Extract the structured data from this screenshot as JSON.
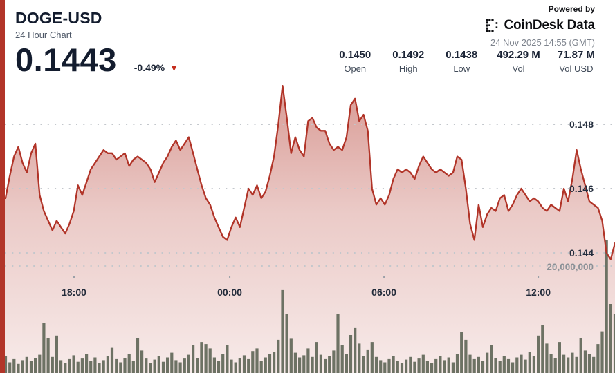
{
  "header": {
    "symbol": "DOGE-USD",
    "subtitle": "24 Hour Chart",
    "price": "0.1443",
    "change": "-0.49%",
    "change_direction": "down",
    "down_arrow": "▼"
  },
  "powered": {
    "label": "Powered by",
    "brand": "CoinDesk Data",
    "timestamp": "24 Nov 2025 14:55 (GMT)"
  },
  "stats": [
    {
      "value": "0.1450",
      "label": "Open"
    },
    {
      "value": "0.1492",
      "label": "High"
    },
    {
      "value": "0.1438",
      "label": "Low"
    },
    {
      "value": "492.29 M",
      "label": "Vol"
    },
    {
      "value": "71.87 M",
      "label": "Vol USD"
    }
  ],
  "colors": {
    "accent_red": "#b23529",
    "line": "#b13428",
    "area_fill_top": "rgba(177,52,40,0.50)",
    "area_fill_mid": "rgba(177,52,40,0.26)",
    "area_fill_bottom": "rgba(177,52,40,0.10)",
    "volume_bar": "#6d7264",
    "gridline": "#c3c7cc",
    "tick_dot": "#9aa0a8",
    "price_label": "#242e3e",
    "volume_label": "#8b9096",
    "time_label": "#222b3a"
  },
  "chart_data": {
    "type": "area",
    "title": "DOGE-USD 24 Hour Chart",
    "interval_minutes": 10,
    "points": 144,
    "ylim_price": [
      0.1438,
      0.1492
    ],
    "grid": "dotted-horizontal",
    "legend": "none",
    "y_axis_price": {
      "side": "right",
      "tick_values": [
        0.148,
        0.146,
        0.144
      ],
      "tick_labels": [
        "0.148",
        "0.146",
        "0.144"
      ]
    },
    "y_axis_volume": {
      "side": "right",
      "tick_value_millions": 20,
      "tick_label": "20,000,000"
    },
    "x_axis": {
      "tick_labels": [
        "18:00",
        "00:00",
        "06:00",
        "12:00"
      ],
      "tick_indices": [
        16.07,
        52.6,
        88.8,
        125.0
      ]
    },
    "series": [
      {
        "name": "price",
        "type": "line-area",
        "values": [
          0.1457,
          0.1464,
          0.147,
          0.1473,
          0.1468,
          0.1465,
          0.1471,
          0.1474,
          0.1458,
          0.1453,
          0.145,
          0.1447,
          0.145,
          0.1448,
          0.1446,
          0.1449,
          0.1453,
          0.1461,
          0.1458,
          0.1462,
          0.1466,
          0.1468,
          0.147,
          0.1472,
          0.1471,
          0.1471,
          0.1469,
          0.147,
          0.1471,
          0.1467,
          0.1469,
          0.147,
          0.1469,
          0.1468,
          0.1466,
          0.1462,
          0.1465,
          0.1468,
          0.147,
          0.1473,
          0.1475,
          0.1472,
          0.1474,
          0.1476,
          0.1471,
          0.1466,
          0.1461,
          0.1457,
          0.1455,
          0.1451,
          0.1448,
          0.1445,
          0.1444,
          0.1448,
          0.1451,
          0.1448,
          0.1454,
          0.146,
          0.1458,
          0.1461,
          0.1457,
          0.1459,
          0.1464,
          0.147,
          0.148,
          0.1492,
          0.1482,
          0.1471,
          0.1476,
          0.1472,
          0.147,
          0.1481,
          0.1482,
          0.1479,
          0.1478,
          0.1478,
          0.1474,
          0.1472,
          0.1473,
          0.1472,
          0.1476,
          0.1486,
          0.1488,
          0.1481,
          0.1483,
          0.1478,
          0.146,
          0.1455,
          0.1457,
          0.1455,
          0.1458,
          0.1463,
          0.1466,
          0.1465,
          0.1466,
          0.1465,
          0.1463,
          0.1467,
          0.147,
          0.1468,
          0.1466,
          0.1465,
          0.1466,
          0.1465,
          0.1464,
          0.1465,
          0.147,
          0.1469,
          0.146,
          0.1449,
          0.1444,
          0.1455,
          0.1448,
          0.1452,
          0.1454,
          0.1453,
          0.1457,
          0.1458,
          0.1453,
          0.1455,
          0.1458,
          0.146,
          0.1458,
          0.1456,
          0.1457,
          0.1456,
          0.1454,
          0.1453,
          0.1455,
          0.1454,
          0.1453,
          0.146,
          0.1456,
          0.1463,
          0.1472,
          0.1466,
          0.1461,
          0.1456,
          0.1455,
          0.1454,
          0.145,
          0.144,
          0.1438,
          0.1443
        ]
      },
      {
        "name": "volume",
        "type": "bar",
        "unit": "millions",
        "values": [
          3.2,
          2.0,
          2.6,
          1.7,
          2.4,
          3.0,
          2.2,
          2.8,
          3.4,
          9.3,
          6.5,
          3.0,
          7.0,
          2.4,
          1.9,
          2.6,
          3.3,
          2.1,
          2.7,
          3.5,
          2.2,
          2.9,
          1.8,
          2.4,
          3.1,
          4.7,
          2.6,
          2.0,
          2.8,
          3.6,
          2.3,
          6.5,
          4.2,
          2.7,
          1.9,
          2.5,
          3.2,
          2.1,
          2.9,
          3.8,
          2.4,
          2.0,
          2.7,
          3.4,
          5.2,
          2.8,
          5.8,
          5.4,
          4.6,
          2.9,
          2.2,
          3.6,
          5.2,
          2.5,
          2.0,
          2.8,
          3.3,
          2.6,
          4.1,
          4.6,
          2.3,
          2.9,
          3.5,
          4.0,
          6.2,
          15.5,
          11.0,
          6.4,
          3.8,
          2.9,
          3.3,
          4.6,
          3.0,
          5.8,
          3.4,
          2.6,
          3.1,
          4.2,
          11.0,
          5.2,
          3.6,
          7.1,
          8.4,
          5.5,
          3.2,
          4.4,
          5.8,
          3.0,
          2.4,
          2.0,
          2.6,
          3.2,
          2.2,
          1.8,
          2.5,
          3.0,
          2.1,
          2.7,
          3.4,
          2.3,
          1.9,
          2.6,
          3.1,
          2.4,
          2.9,
          2.0,
          3.6,
          7.7,
          6.2,
          3.4,
          2.6,
          3.0,
          2.2,
          3.8,
          5.2,
          2.8,
          2.3,
          3.1,
          2.6,
          2.0,
          2.9,
          3.4,
          2.5,
          4.0,
          3.2,
          7.0,
          9.0,
          5.5,
          3.6,
          2.8,
          5.8,
          3.4,
          2.9,
          3.8,
          3.0,
          6.5,
          4.2,
          3.6,
          3.0,
          5.4,
          7.8,
          24.9,
          12.9,
          11.0
        ]
      }
    ]
  }
}
